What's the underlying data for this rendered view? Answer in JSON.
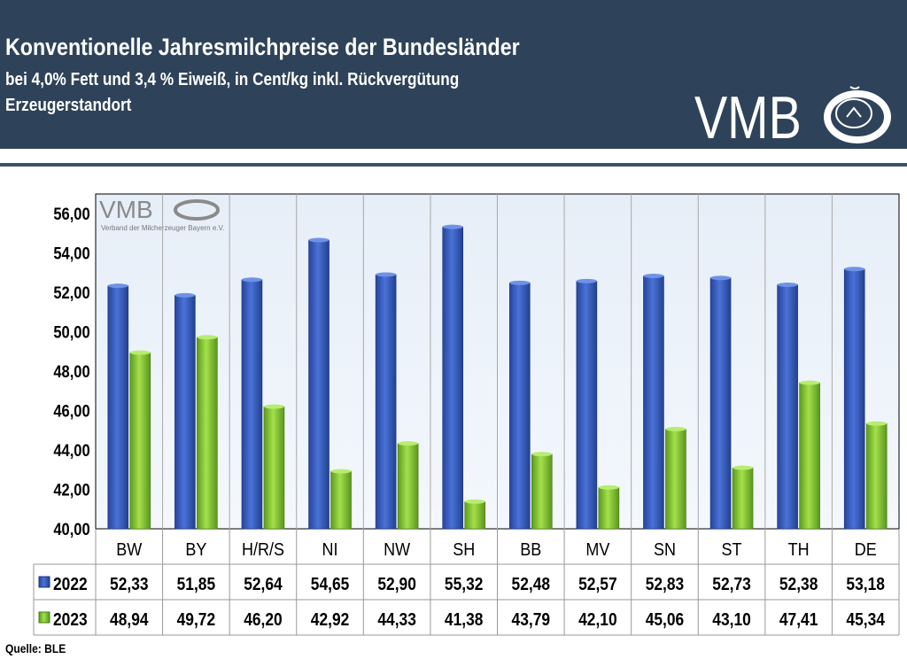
{
  "header": {
    "title": "Konventionelle Jahresmilchpreise der Bundesländer",
    "subtitle": "bei 4,0% Fett und 3,4 % Eiweiß, in Cent/kg inkl. Rückvergütung",
    "subtitle2": "Erzeugerstandort",
    "logo_text": "VMB"
  },
  "watermark": {
    "logo_text": "VMB",
    "caption": "Verband der Milcherzeuger Bayern e.V."
  },
  "source": "Quelle: BLE",
  "chart_data": {
    "type": "bar",
    "categories": [
      "BW",
      "BY",
      "H/R/S",
      "NI",
      "NW",
      "SH",
      "BB",
      "MV",
      "SN",
      "ST",
      "TH",
      "DE"
    ],
    "series": [
      {
        "name": "2022",
        "color": "#3a5fc4",
        "values": [
          52.33,
          51.85,
          52.64,
          54.65,
          52.9,
          55.32,
          52.48,
          52.57,
          52.83,
          52.73,
          52.38,
          53.18
        ],
        "labels": [
          "52,33",
          "51,85",
          "52,64",
          "54,65",
          "52,90",
          "55,32",
          "52,48",
          "52,57",
          "52,83",
          "52,73",
          "52,38",
          "53,18"
        ]
      },
      {
        "name": "2023",
        "color": "#8fcf3c",
        "values": [
          48.94,
          49.72,
          46.2,
          42.92,
          44.33,
          41.38,
          43.79,
          42.1,
          45.06,
          43.1,
          47.41,
          45.34
        ],
        "labels": [
          "48,94",
          "49,72",
          "46,20",
          "42,92",
          "44,33",
          "41,38",
          "43,79",
          "42,10",
          "45,06",
          "43,10",
          "47,41",
          "45,34"
        ]
      }
    ],
    "ylim": [
      40,
      57
    ],
    "yticks": [
      "40,00",
      "42,00",
      "44,00",
      "46,00",
      "48,00",
      "50,00",
      "52,00",
      "54,00",
      "56,00"
    ],
    "ytick_values": [
      40,
      42,
      44,
      46,
      48,
      50,
      52,
      54,
      56
    ],
    "grid": "vertical",
    "legend": "data-table"
  }
}
